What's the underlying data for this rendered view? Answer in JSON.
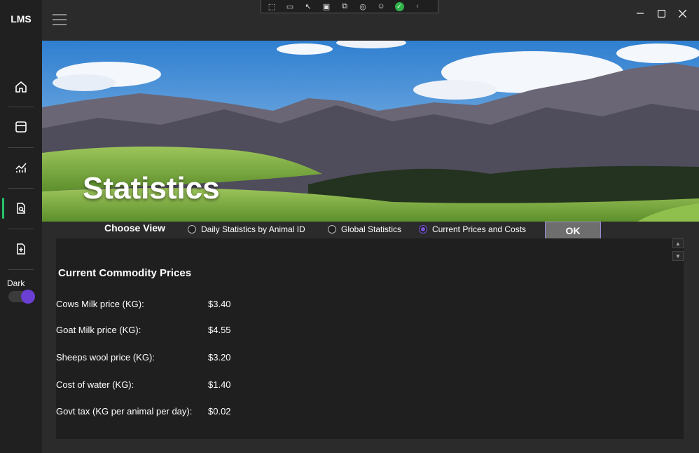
{
  "app": {
    "title": "LMS"
  },
  "sidebar": {
    "items": [
      {
        "name": "home"
      },
      {
        "name": "dashboard"
      },
      {
        "name": "analytics"
      },
      {
        "name": "statistics"
      },
      {
        "name": "add-record"
      }
    ],
    "theme_label": "Dark",
    "theme_on": true
  },
  "hero": {
    "title": "Statistics"
  },
  "view_selector": {
    "label": "Choose View",
    "options": [
      {
        "label": "Daily Statistics by Animal ID",
        "selected": false
      },
      {
        "label": "Global Statistics",
        "selected": false
      },
      {
        "label": "Current Prices and Costs",
        "selected": true
      }
    ],
    "ok_label": "OK"
  },
  "prices": {
    "title": "Current Commodity Prices",
    "rows": [
      {
        "label": "Cows Milk price (KG):",
        "value": "$3.40"
      },
      {
        "label": "Goat Milk price (KG):",
        "value": "$4.55"
      },
      {
        "label": "Sheeps wool price (KG):",
        "value": "$3.20"
      },
      {
        "label": "Cost of water (KG):",
        "value": "$1.40"
      },
      {
        "label": "Govt tax (KG per animal per day):",
        "value": "$0.02"
      }
    ]
  },
  "colors": {
    "accent": "#6b3fd4",
    "active_nav": "#27c46b",
    "background": "#2b2b2b",
    "panel": "#1f1f1f"
  }
}
